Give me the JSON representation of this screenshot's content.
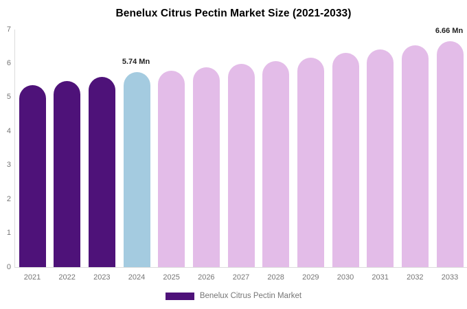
{
  "title": "Benelux Citrus Pectin Market Size (2021-2033)",
  "legend": {
    "label": "Benelux Citrus Pectin Market",
    "swatch_color": "#4E1279"
  },
  "chart_data": {
    "type": "bar",
    "title": "Benelux Citrus Pectin Market Size (2021-2033)",
    "categories": [
      "2021",
      "2022",
      "2023",
      "2024",
      "2025",
      "2026",
      "2027",
      "2028",
      "2029",
      "2030",
      "2031",
      "2032",
      "2033"
    ],
    "series": [
      {
        "name": "Benelux Citrus Pectin Market",
        "values": [
          5.37,
          5.49,
          5.61,
          5.74,
          5.79,
          5.89,
          5.98,
          6.07,
          6.17,
          6.31,
          6.42,
          6.53,
          6.66
        ]
      }
    ],
    "bar_colors": [
      "#4E1279",
      "#4E1279",
      "#4E1279",
      "#A4CBE0",
      "#E3BCE8",
      "#E3BCE8",
      "#E3BCE8",
      "#E3BCE8",
      "#E3BCE8",
      "#E3BCE8",
      "#E3BCE8",
      "#E3BCE8",
      "#E3BCE8"
    ],
    "ylim": [
      0,
      7
    ],
    "yticks": [
      0,
      1,
      2,
      3,
      4,
      5,
      6,
      7
    ],
    "grid": false,
    "legend_position": "bottom",
    "annotations": [
      {
        "category": "2024",
        "text": "5.74 Mn"
      },
      {
        "category": "2033",
        "text": "6.66 Mn"
      }
    ]
  },
  "colors": {
    "historical_bar": "#4E1279",
    "base_year_bar": "#A4CBE0",
    "forecast_bar": "#E3BCE8",
    "axis_line": "#DCDCDC",
    "tick_label": "#757575",
    "data_label": "#222222",
    "title_text": "#000000",
    "background": "#FFFFFF"
  }
}
